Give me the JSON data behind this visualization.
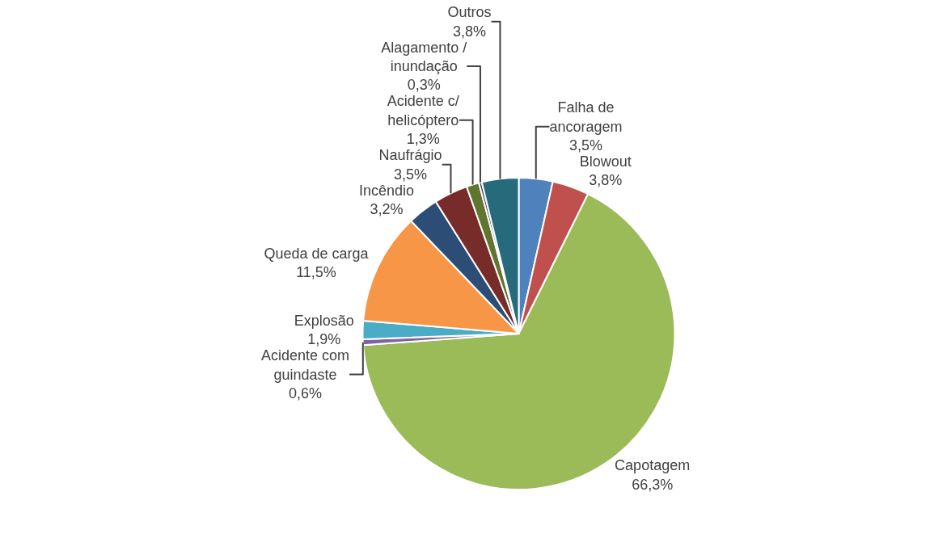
{
  "chart_data": {
    "type": "pie",
    "categories": [
      "Falha de ancoragem",
      "Blowout",
      "Capotagem",
      "Acidente com guindaste",
      "Explosão",
      "Queda de carga",
      "Incêndio",
      "Naufrágio",
      "Acidente c/ helicóptero",
      "Alagamento / inundação",
      "Outros"
    ],
    "values": [
      3.5,
      3.8,
      66.3,
      0.6,
      1.9,
      11.5,
      3.2,
      3.5,
      1.3,
      0.3,
      3.8
    ],
    "value_labels": [
      "3,5%",
      "3,8%",
      "66,3%",
      "0,6%",
      "1,9%",
      "11,5%",
      "3,2%",
      "3,5%",
      "1,3%",
      "0,3%",
      "3,8%"
    ],
    "colors": [
      "#4f81bd",
      "#c0504d",
      "#9bbb59",
      "#8064a2",
      "#4bacc6",
      "#f79646",
      "#2c4d75",
      "#772c2a",
      "#5f7530",
      "#4d3b62",
      "#276a7c"
    ],
    "legend": false
  }
}
